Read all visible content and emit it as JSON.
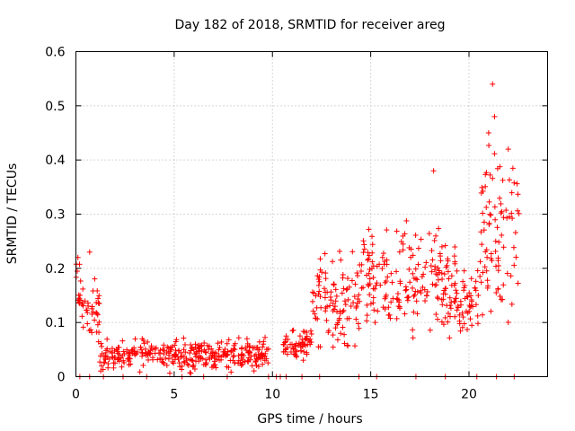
{
  "chart_data": {
    "type": "scatter",
    "title": "Day 182 of 2018, SRMTID for receiver areg",
    "xlabel": "GPS time / hours",
    "ylabel": "SRMTID / TECUs",
    "xlim": [
      0,
      24
    ],
    "ylim": [
      0,
      0.6
    ],
    "xticks": [
      0,
      5,
      10,
      15,
      20
    ],
    "xtick_labels": [
      "0",
      "5",
      "10",
      "15",
      "20"
    ],
    "yticks": [
      0,
      0.1,
      0.2,
      0.3,
      0.4,
      0.5,
      0.6
    ],
    "ytick_labels": [
      "0",
      "0.1",
      "0.2",
      "0.3",
      "0.4",
      "0.5",
      "0.6"
    ],
    "grid": true,
    "marker": "+",
    "color": "#ff0000",
    "envelope_description_hours": [
      {
        "t_start": 0.0,
        "t_end": 0.3,
        "typical": 0.17,
        "spread": 0.05
      },
      {
        "t_start": 0.3,
        "t_end": 1.2,
        "typical": 0.12,
        "spread": 0.04
      },
      {
        "t_start": 1.2,
        "t_end": 9.8,
        "typical": 0.04,
        "spread": 0.02
      },
      {
        "t_start": 10.5,
        "t_end": 12.0,
        "typical": 0.06,
        "spread": 0.02
      },
      {
        "t_start": 12.0,
        "t_end": 14.5,
        "typical": 0.14,
        "spread": 0.06
      },
      {
        "t_start": 14.5,
        "t_end": 19.5,
        "typical": 0.17,
        "spread": 0.07
      },
      {
        "t_start": 19.5,
        "t_end": 20.5,
        "typical": 0.13,
        "spread": 0.05
      },
      {
        "t_start": 20.5,
        "t_end": 22.6,
        "typical": 0.26,
        "spread": 0.12
      }
    ],
    "notable_points": [
      {
        "x": 0.1,
        "y": 0.22
      },
      {
        "x": 0.7,
        "y": 0.23
      },
      {
        "x": 18.2,
        "y": 0.38
      },
      {
        "x": 21.0,
        "y": 0.45
      },
      {
        "x": 21.2,
        "y": 0.54
      },
      {
        "x": 21.3,
        "y": 0.48
      },
      {
        "x": 22.0,
        "y": 0.42
      }
    ],
    "zero_points_x": [
      0.2,
      0.7,
      1.4,
      2.4,
      3.6,
      5.4,
      6.5,
      7.7,
      9.8,
      10.2,
      10.4,
      10.7,
      11.5,
      12.4,
      14.4,
      15.3,
      17.3,
      18.8,
      20.4,
      21.4,
      22.3
    ]
  }
}
